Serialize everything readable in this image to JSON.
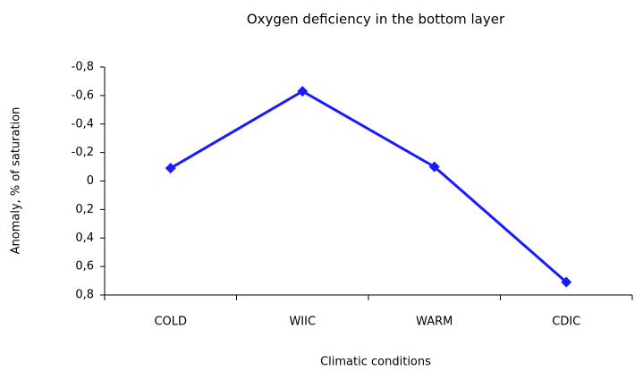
{
  "chart_data": {
    "type": "line",
    "title": "Oxygen deficiency in the bottom layer",
    "x_label": "Climatic conditions",
    "y_label": "Anomaly, % of saturation",
    "categories": [
      "COLD",
      "WIIC",
      "WARM",
      "CDIC"
    ],
    "series": [
      {
        "name": "Oxygen deficiency",
        "color": "#1a1aff",
        "values": [
          -0.09,
          -0.63,
          -0.1,
          0.71
        ]
      }
    ],
    "ylim": [
      0.8,
      -0.8
    ],
    "yticks": [
      {
        "value": -0.8,
        "label": "-0,8"
      },
      {
        "value": -0.6,
        "label": "-0,6"
      },
      {
        "value": -0.4,
        "label": "-0,4"
      },
      {
        "value": -0.2,
        "label": "-0,2"
      },
      0,
      {
        "value": 0.2,
        "label": "0,2"
      },
      {
        "value": 0.4,
        "label": "0,4"
      },
      {
        "value": 0.6,
        "label": "0,6"
      },
      {
        "value": 0.8,
        "label": "0,8"
      }
    ],
    "grid": false,
    "legend": false
  }
}
